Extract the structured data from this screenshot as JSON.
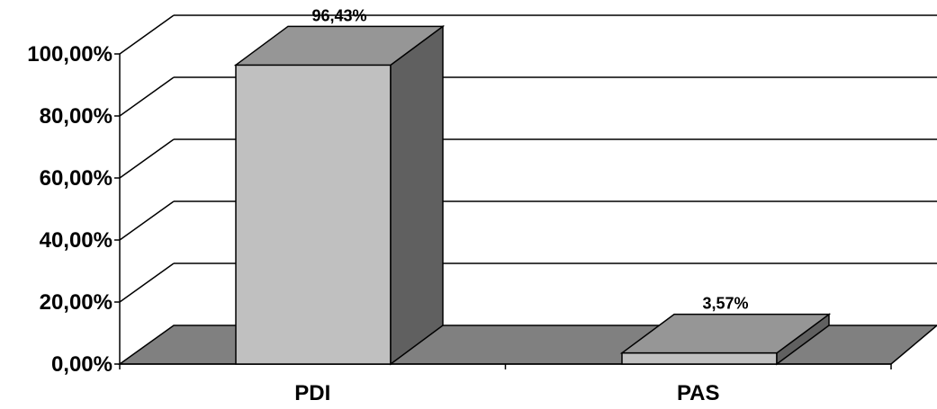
{
  "chart_data": {
    "type": "bar",
    "style": "3d-column",
    "categories": [
      "PDI",
      "PAS"
    ],
    "values": [
      96.43,
      3.57
    ],
    "data_labels": [
      "96,43%",
      "3,57%"
    ],
    "y_ticks": [
      {
        "value": 0,
        "label": "0,00%"
      },
      {
        "value": 20,
        "label": "20,00%"
      },
      {
        "value": 40,
        "label": "40,00%"
      },
      {
        "value": 60,
        "label": "60,00%"
      },
      {
        "value": 80,
        "label": "80,00%"
      },
      {
        "value": 100,
        "label": "100,00%"
      }
    ],
    "ylim": [
      0,
      100
    ],
    "grid": true,
    "legend": "none",
    "colors": {
      "bar_front": "#c0c0c0",
      "bar_top": "#969696",
      "bar_side": "#606060",
      "floor": "#808080",
      "grid": "#000000"
    }
  }
}
